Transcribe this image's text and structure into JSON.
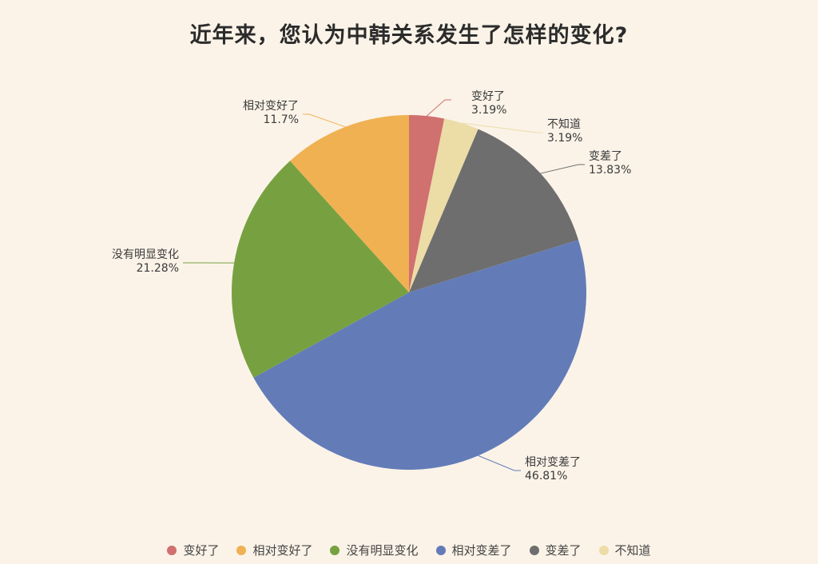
{
  "title": "近年来，您认为中韩关系发生了怎样的变化?",
  "colors": {
    "background": "#fbf3e8",
    "变好了": "#d0706f",
    "相对变好了": "#f0b153",
    "没有明显变化": "#77a140",
    "相对变差了": "#637cb8",
    "变差了": "#6e6e6e",
    "不知道": "#ecdca6"
  },
  "legend": [
    {
      "label": "变好了",
      "color": "#d0706f"
    },
    {
      "label": "相对变好了",
      "color": "#f0b153"
    },
    {
      "label": "没有明显变化",
      "color": "#77a140"
    },
    {
      "label": "相对变差了",
      "color": "#637cb8"
    },
    {
      "label": "变差了",
      "color": "#6e6e6e"
    },
    {
      "label": "不知道",
      "color": "#ecdca6"
    }
  ],
  "chart_data": {
    "type": "pie",
    "title": "近年来，您认为中韩关系发生了怎样的变化?",
    "categories": [
      "变好了",
      "相对变好了",
      "没有明显变化",
      "相对变差了",
      "变差了",
      "不知道"
    ],
    "values": [
      3.19,
      11.7,
      21.28,
      46.81,
      13.83,
      3.19
    ],
    "unit": "%",
    "slice_order_clockwise_from_top": [
      "变好了",
      "不知道",
      "变差了",
      "相对变差了",
      "没有明显变化",
      "相对变好了"
    ],
    "data_labels": [
      {
        "label": "变好了",
        "value_text": "3.19%"
      },
      {
        "label": "不知道",
        "value_text": "3.19%"
      },
      {
        "label": "变差了",
        "value_text": "13.83%"
      },
      {
        "label": "相对变差了",
        "value_text": "46.81%"
      },
      {
        "label": "没有明显变化",
        "value_text": "21.28%"
      },
      {
        "label": "相对变好了",
        "value_text": "11.7%"
      }
    ],
    "legend_position": "bottom",
    "grid": false
  }
}
